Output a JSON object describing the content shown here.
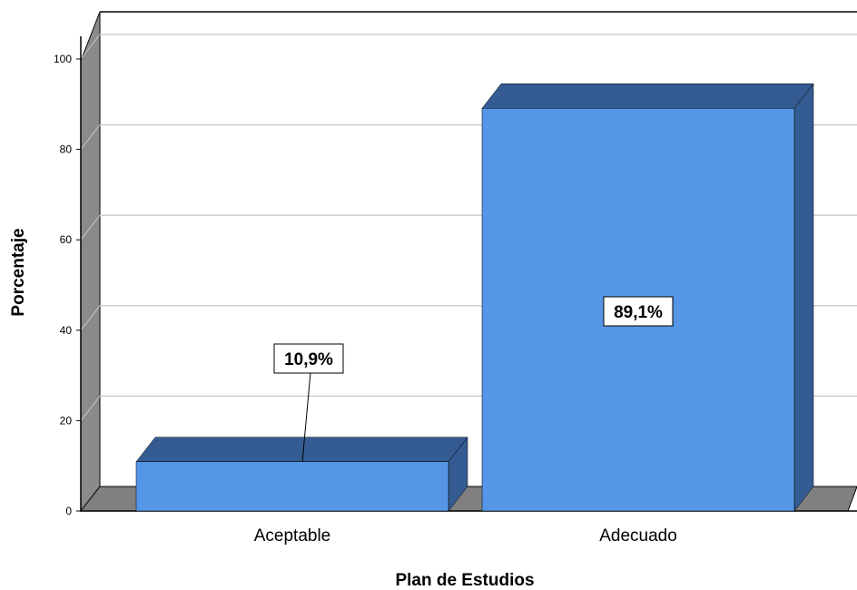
{
  "chart_data": {
    "type": "bar",
    "categories": [
      "Aceptable",
      "Adecuado"
    ],
    "values": [
      10.9,
      89.1
    ],
    "data_labels": [
      "10,9%",
      "89,1%"
    ],
    "xlabel": "Plan de Estudios",
    "ylabel": "Porcentaje",
    "ylim": [
      0,
      100
    ],
    "yticks": [
      "0",
      "20",
      "40",
      "60",
      "80",
      "100"
    ],
    "grid": true,
    "style": "3d",
    "colors": {
      "bar_front": "#5596e6",
      "bar_top": "#345c92",
      "bar_side": "#345c92",
      "wall": "#8a8a8a",
      "floor": "#808080",
      "grid": "#c8c8c8",
      "label_box": "#ffffff"
    }
  }
}
